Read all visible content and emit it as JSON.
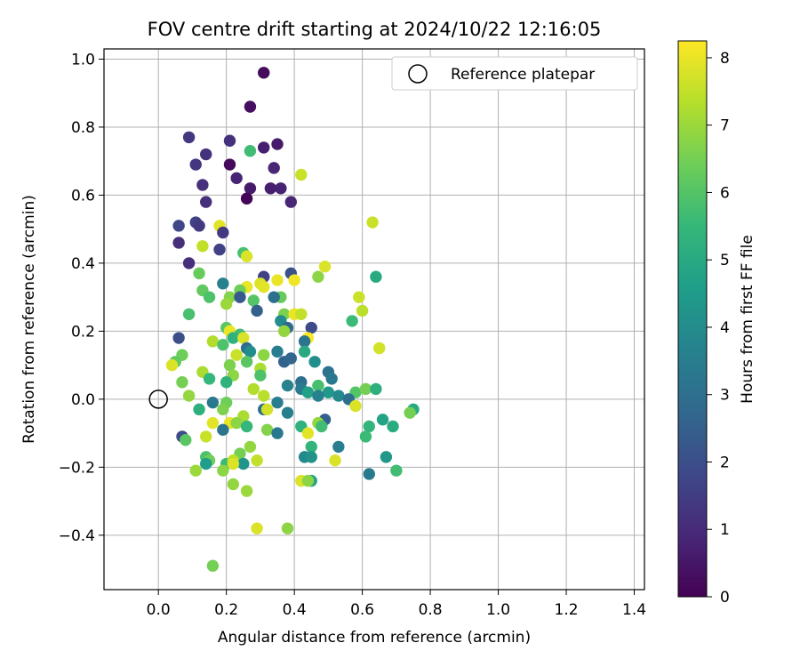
{
  "chart_data": {
    "type": "scatter",
    "title": "FOV centre drift starting at 2024/10/22 12:16:05",
    "xlabel": "Angular distance from reference (arcmin)",
    "ylabel": "Rotation from reference (arcmin)",
    "xlim": [
      -0.16,
      1.43
    ],
    "ylim": [
      -0.56,
      1.03
    ],
    "xticks": [
      "0.0",
      "0.2",
      "0.4",
      "0.6",
      "0.8",
      "1.0",
      "1.2",
      "1.4"
    ],
    "yticks": [
      "−0.4",
      "−0.2",
      "0.0",
      "0.2",
      "0.4",
      "0.6",
      "0.8",
      "1.0"
    ],
    "grid": true,
    "legend": {
      "placement": "top-right",
      "entries": [
        "Reference platepar"
      ]
    },
    "reference_point": {
      "x": 0.0,
      "y": 0.0,
      "marker": "open-circle"
    },
    "colorbar": {
      "label": "Hours from first FF file",
      "range": [
        0,
        8.25
      ],
      "ticks": [
        "0",
        "1",
        "2",
        "3",
        "4",
        "5",
        "6",
        "7",
        "8"
      ],
      "colormap": "viridis"
    },
    "points": [
      {
        "x": 0.31,
        "y": 0.96,
        "h": 0.2
      },
      {
        "x": 0.27,
        "y": 0.86,
        "h": 0.3
      },
      {
        "x": 0.09,
        "y": 0.77,
        "h": 1.3
      },
      {
        "x": 0.21,
        "y": 0.76,
        "h": 1.2
      },
      {
        "x": 0.35,
        "y": 0.75,
        "h": 0.6
      },
      {
        "x": 0.31,
        "y": 0.74,
        "h": 0.7
      },
      {
        "x": 0.27,
        "y": 0.73,
        "h": 5.7
      },
      {
        "x": 0.14,
        "y": 0.72,
        "h": 1.2
      },
      {
        "x": 0.11,
        "y": 0.69,
        "h": 1.3
      },
      {
        "x": 0.21,
        "y": 0.69,
        "h": 0.2
      },
      {
        "x": 0.34,
        "y": 0.68,
        "h": 0.9
      },
      {
        "x": 0.42,
        "y": 0.66,
        "h": 7.6
      },
      {
        "x": 0.23,
        "y": 0.65,
        "h": 0.8
      },
      {
        "x": 0.13,
        "y": 0.63,
        "h": 1.1
      },
      {
        "x": 0.27,
        "y": 0.62,
        "h": 0.6
      },
      {
        "x": 0.33,
        "y": 0.62,
        "h": 0.7
      },
      {
        "x": 0.36,
        "y": 0.62,
        "h": 0.8
      },
      {
        "x": 0.26,
        "y": 0.59,
        "h": 0.1
      },
      {
        "x": 0.14,
        "y": 0.58,
        "h": 1.1
      },
      {
        "x": 0.39,
        "y": 0.58,
        "h": 0.9
      },
      {
        "x": 0.63,
        "y": 0.52,
        "h": 7.6
      },
      {
        "x": 0.11,
        "y": 0.52,
        "h": 1.6
      },
      {
        "x": 0.12,
        "y": 0.51,
        "h": 1.4
      },
      {
        "x": 0.06,
        "y": 0.51,
        "h": 1.8
      },
      {
        "x": 0.18,
        "y": 0.51,
        "h": 7.9
      },
      {
        "x": 0.19,
        "y": 0.49,
        "h": 1.4
      },
      {
        "x": 0.06,
        "y": 0.46,
        "h": 1.1
      },
      {
        "x": 0.13,
        "y": 0.45,
        "h": 7.5
      },
      {
        "x": 0.18,
        "y": 0.44,
        "h": 1.6
      },
      {
        "x": 0.25,
        "y": 0.43,
        "h": 5.8
      },
      {
        "x": 0.26,
        "y": 0.42,
        "h": 7.8
      },
      {
        "x": 0.09,
        "y": 0.4,
        "h": 1.1
      },
      {
        "x": 0.49,
        "y": 0.39,
        "h": 7.8
      },
      {
        "x": 0.12,
        "y": 0.37,
        "h": 6.3
      },
      {
        "x": 0.39,
        "y": 0.37,
        "h": 2.1
      },
      {
        "x": 0.47,
        "y": 0.36,
        "h": 6.8
      },
      {
        "x": 0.64,
        "y": 0.36,
        "h": 5.0
      },
      {
        "x": 0.31,
        "y": 0.36,
        "h": 1.6
      },
      {
        "x": 0.35,
        "y": 0.35,
        "h": 8.0
      },
      {
        "x": 0.3,
        "y": 0.34,
        "h": 7.8
      },
      {
        "x": 0.4,
        "y": 0.35,
        "h": 8.1
      },
      {
        "x": 0.19,
        "y": 0.34,
        "h": 3.6
      },
      {
        "x": 0.26,
        "y": 0.33,
        "h": 8.0
      },
      {
        "x": 0.31,
        "y": 0.33,
        "h": 7.9
      },
      {
        "x": 0.24,
        "y": 0.32,
        "h": 6.4
      },
      {
        "x": 0.13,
        "y": 0.32,
        "h": 6.2
      },
      {
        "x": 0.15,
        "y": 0.3,
        "h": 5.9
      },
      {
        "x": 0.21,
        "y": 0.3,
        "h": 6.7
      },
      {
        "x": 0.36,
        "y": 0.3,
        "h": 6.3
      },
      {
        "x": 0.59,
        "y": 0.3,
        "h": 7.6
      },
      {
        "x": 0.34,
        "y": 0.3,
        "h": 3.0
      },
      {
        "x": 0.24,
        "y": 0.3,
        "h": 2.3
      },
      {
        "x": 0.28,
        "y": 0.29,
        "h": 6.0
      },
      {
        "x": 0.2,
        "y": 0.28,
        "h": 7.0
      },
      {
        "x": 0.29,
        "y": 0.26,
        "h": 2.5
      },
      {
        "x": 0.6,
        "y": 0.26,
        "h": 7.4
      },
      {
        "x": 0.09,
        "y": 0.25,
        "h": 5.8
      },
      {
        "x": 0.37,
        "y": 0.25,
        "h": 6.6
      },
      {
        "x": 0.4,
        "y": 0.25,
        "h": 8.0
      },
      {
        "x": 0.42,
        "y": 0.25,
        "h": 7.5
      },
      {
        "x": 0.36,
        "y": 0.23,
        "h": 4.0
      },
      {
        "x": 0.57,
        "y": 0.23,
        "h": 5.6
      },
      {
        "x": 0.2,
        "y": 0.21,
        "h": 6.1
      },
      {
        "x": 0.38,
        "y": 0.21,
        "h": 2.8
      },
      {
        "x": 0.45,
        "y": 0.21,
        "h": 1.9
      },
      {
        "x": 0.37,
        "y": 0.2,
        "h": 6.9
      },
      {
        "x": 0.21,
        "y": 0.2,
        "h": 8.0
      },
      {
        "x": 0.24,
        "y": 0.19,
        "h": 5.7
      },
      {
        "x": 0.22,
        "y": 0.18,
        "h": 5.3
      },
      {
        "x": 0.06,
        "y": 0.18,
        "h": 2.0
      },
      {
        "x": 0.25,
        "y": 0.18,
        "h": 7.8
      },
      {
        "x": 0.44,
        "y": 0.18,
        "h": 8.2
      },
      {
        "x": 0.16,
        "y": 0.17,
        "h": 7.3
      },
      {
        "x": 0.43,
        "y": 0.17,
        "h": 3.2
      },
      {
        "x": 0.19,
        "y": 0.16,
        "h": 5.9
      },
      {
        "x": 0.26,
        "y": 0.15,
        "h": 2.9
      },
      {
        "x": 0.27,
        "y": 0.14,
        "h": 4.0
      },
      {
        "x": 0.35,
        "y": 0.14,
        "h": 3.5
      },
      {
        "x": 0.43,
        "y": 0.14,
        "h": 5.0
      },
      {
        "x": 0.65,
        "y": 0.15,
        "h": 7.7
      },
      {
        "x": 0.07,
        "y": 0.13,
        "h": 6.4
      },
      {
        "x": 0.23,
        "y": 0.13,
        "h": 7.6
      },
      {
        "x": 0.31,
        "y": 0.13,
        "h": 6.8
      },
      {
        "x": 0.37,
        "y": 0.11,
        "h": 2.6
      },
      {
        "x": 0.05,
        "y": 0.11,
        "h": 6.2
      },
      {
        "x": 0.04,
        "y": 0.1,
        "h": 7.8
      },
      {
        "x": 0.21,
        "y": 0.1,
        "h": 6.6
      },
      {
        "x": 0.26,
        "y": 0.11,
        "h": 6.1
      },
      {
        "x": 0.3,
        "y": 0.09,
        "h": 7.2
      },
      {
        "x": 0.39,
        "y": 0.12,
        "h": 2.7
      },
      {
        "x": 0.46,
        "y": 0.11,
        "h": 4.1
      },
      {
        "x": 0.5,
        "y": 0.08,
        "h": 3.1
      },
      {
        "x": 0.13,
        "y": 0.08,
        "h": 7.2
      },
      {
        "x": 0.22,
        "y": 0.07,
        "h": 6.8
      },
      {
        "x": 0.3,
        "y": 0.07,
        "h": 5.9
      },
      {
        "x": 0.51,
        "y": 0.06,
        "h": 3.3
      },
      {
        "x": 0.42,
        "y": 0.05,
        "h": 3.0
      },
      {
        "x": 0.2,
        "y": 0.05,
        "h": 5.3
      },
      {
        "x": 0.15,
        "y": 0.06,
        "h": 5.5
      },
      {
        "x": 0.07,
        "y": 0.05,
        "h": 6.5
      },
      {
        "x": 0.38,
        "y": 0.04,
        "h": 3.7
      },
      {
        "x": 0.47,
        "y": 0.04,
        "h": 5.8
      },
      {
        "x": 0.28,
        "y": 0.03,
        "h": 7.3
      },
      {
        "x": 0.42,
        "y": 0.03,
        "h": 3.4
      },
      {
        "x": 0.44,
        "y": 0.02,
        "h": 4.7
      },
      {
        "x": 0.5,
        "y": 0.02,
        "h": 4.4
      },
      {
        "x": 0.58,
        "y": 0.02,
        "h": 6.0
      },
      {
        "x": 0.61,
        "y": 0.03,
        "h": 6.5
      },
      {
        "x": 0.64,
        "y": 0.03,
        "h": 5.2
      },
      {
        "x": 0.47,
        "y": 0.01,
        "h": 3.6
      },
      {
        "x": 0.53,
        "y": 0.01,
        "h": 3.9
      },
      {
        "x": 0.09,
        "y": 0.01,
        "h": 6.9
      },
      {
        "x": 0.31,
        "y": 0.01,
        "h": 7.4
      },
      {
        "x": 0.56,
        "y": 0.0,
        "h": 3.0
      },
      {
        "x": 0.2,
        "y": -0.01,
        "h": 6.4
      },
      {
        "x": 0.35,
        "y": -0.01,
        "h": 3.5
      },
      {
        "x": 0.16,
        "y": -0.01,
        "h": 3.3
      },
      {
        "x": 0.58,
        "y": -0.02,
        "h": 7.8
      },
      {
        "x": 0.12,
        "y": -0.03,
        "h": 5.2
      },
      {
        "x": 0.19,
        "y": -0.03,
        "h": 6.6
      },
      {
        "x": 0.31,
        "y": -0.03,
        "h": 2.9
      },
      {
        "x": 0.32,
        "y": -0.03,
        "h": 7.7
      },
      {
        "x": 0.38,
        "y": -0.04,
        "h": 3.6
      },
      {
        "x": 0.25,
        "y": -0.05,
        "h": 7.2
      },
      {
        "x": 0.75,
        "y": -0.03,
        "h": 5.0
      },
      {
        "x": 0.74,
        "y": -0.04,
        "h": 6.5
      },
      {
        "x": 0.49,
        "y": -0.06,
        "h": 2.5
      },
      {
        "x": 0.47,
        "y": -0.07,
        "h": 6.9
      },
      {
        "x": 0.21,
        "y": -0.07,
        "h": 8.0
      },
      {
        "x": 0.23,
        "y": -0.07,
        "h": 6.8
      },
      {
        "x": 0.16,
        "y": -0.07,
        "h": 7.9
      },
      {
        "x": 0.66,
        "y": -0.06,
        "h": 4.8
      },
      {
        "x": 0.69,
        "y": -0.08,
        "h": 5.1
      },
      {
        "x": 0.26,
        "y": -0.08,
        "h": 5.5
      },
      {
        "x": 0.62,
        "y": -0.08,
        "h": 5.4
      },
      {
        "x": 0.19,
        "y": -0.09,
        "h": 3.2
      },
      {
        "x": 0.32,
        "y": -0.09,
        "h": 6.7
      },
      {
        "x": 0.42,
        "y": -0.08,
        "h": 5.3
      },
      {
        "x": 0.48,
        "y": -0.08,
        "h": 5.7
      },
      {
        "x": 0.35,
        "y": -0.1,
        "h": 3.3
      },
      {
        "x": 0.44,
        "y": -0.1,
        "h": 7.9
      },
      {
        "x": 0.07,
        "y": -0.11,
        "h": 1.9
      },
      {
        "x": 0.14,
        "y": -0.11,
        "h": 7.6
      },
      {
        "x": 0.61,
        "y": -0.11,
        "h": 5.6
      },
      {
        "x": 0.08,
        "y": -0.12,
        "h": 6.1
      },
      {
        "x": 0.45,
        "y": -0.14,
        "h": 5.4
      },
      {
        "x": 0.53,
        "y": -0.14,
        "h": 3.5
      },
      {
        "x": 0.27,
        "y": -0.14,
        "h": 6.9
      },
      {
        "x": 0.14,
        "y": -0.17,
        "h": 5.9
      },
      {
        "x": 0.24,
        "y": -0.16,
        "h": 6.5
      },
      {
        "x": 0.43,
        "y": -0.17,
        "h": 3.9
      },
      {
        "x": 0.45,
        "y": -0.17,
        "h": 4.2
      },
      {
        "x": 0.52,
        "y": -0.18,
        "h": 7.8
      },
      {
        "x": 0.67,
        "y": -0.17,
        "h": 4.4
      },
      {
        "x": 0.15,
        "y": -0.18,
        "h": 6.4
      },
      {
        "x": 0.29,
        "y": -0.18,
        "h": 7.5
      },
      {
        "x": 0.2,
        "y": -0.19,
        "h": 5.6
      },
      {
        "x": 0.22,
        "y": -0.18,
        "h": 7.4
      },
      {
        "x": 0.14,
        "y": -0.19,
        "h": 4.6
      },
      {
        "x": 0.25,
        "y": -0.19,
        "h": 4.3
      },
      {
        "x": 0.11,
        "y": -0.21,
        "h": 7.0
      },
      {
        "x": 0.19,
        "y": -0.21,
        "h": 6.8
      },
      {
        "x": 0.22,
        "y": -0.19,
        "h": 7.8
      },
      {
        "x": 0.62,
        "y": -0.22,
        "h": 3.4
      },
      {
        "x": 0.7,
        "y": -0.21,
        "h": 5.7
      },
      {
        "x": 0.45,
        "y": -0.24,
        "h": 4.8
      },
      {
        "x": 0.42,
        "y": -0.24,
        "h": 7.8
      },
      {
        "x": 0.44,
        "y": -0.24,
        "h": 6.8
      },
      {
        "x": 0.22,
        "y": -0.25,
        "h": 6.9
      },
      {
        "x": 0.26,
        "y": -0.27,
        "h": 7.0
      },
      {
        "x": 0.29,
        "y": -0.38,
        "h": 7.8
      },
      {
        "x": 0.38,
        "y": -0.38,
        "h": 6.8
      },
      {
        "x": 0.16,
        "y": -0.49,
        "h": 6.5
      }
    ]
  }
}
